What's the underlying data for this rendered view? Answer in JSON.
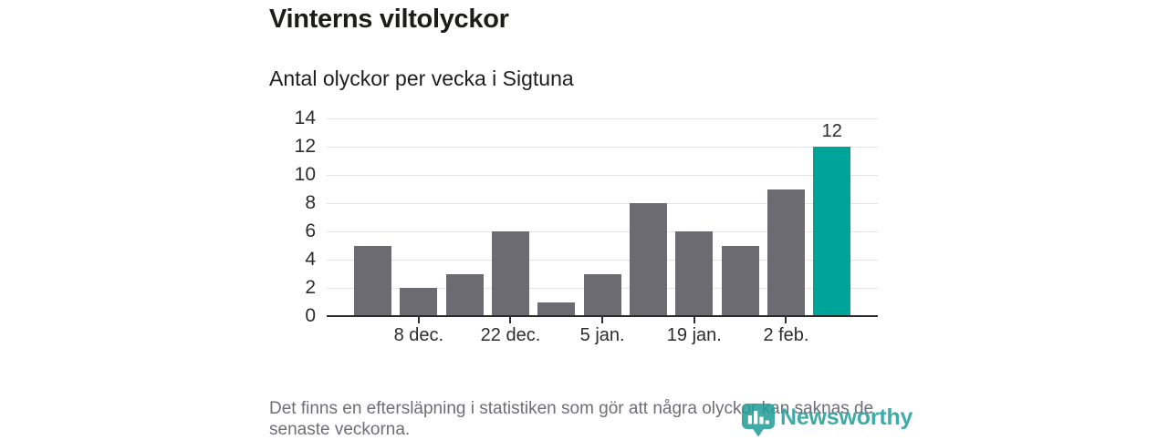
{
  "header": {
    "title": "Vinterns viltolyckor",
    "subtitle": "Antal olyckor per vecka i Sigtuna"
  },
  "chart_data": {
    "type": "bar",
    "title": "Vinterns viltolyckor",
    "subtitle": "Antal olyckor per vecka i Sigtuna",
    "values": [
      5,
      2,
      3,
      6,
      1,
      3,
      8,
      6,
      5,
      9,
      12
    ],
    "highlight_index": 10,
    "value_labels": [
      {
        "index": 10,
        "text": "12"
      }
    ],
    "ylim": [
      0,
      14
    ],
    "y_ticks": [
      0,
      2,
      4,
      6,
      8,
      10,
      12,
      14
    ],
    "x_ticks": [
      {
        "bar_index": 1,
        "label": "8 dec."
      },
      {
        "bar_index": 3,
        "label": "22 dec."
      },
      {
        "bar_index": 5,
        "label": "5 jan."
      },
      {
        "bar_index": 7,
        "label": "19 jan."
      },
      {
        "bar_index": 9,
        "label": "2 feb."
      }
    ],
    "grid": "horizontal",
    "legend": "none",
    "colors": {
      "bar": "#6c6b71",
      "highlight": "#00a398",
      "gridline": "#e4e4e4",
      "axis": "#2b2b2b",
      "tick": "#2f2f2f"
    }
  },
  "footer": {
    "lines": [
      "Det finns en eftersläpning i statistiken som gör att några olyckor kan saknas de",
      "senaste veckorna."
    ]
  },
  "logo": {
    "text": "Newsworthy",
    "color": "#249e99"
  }
}
